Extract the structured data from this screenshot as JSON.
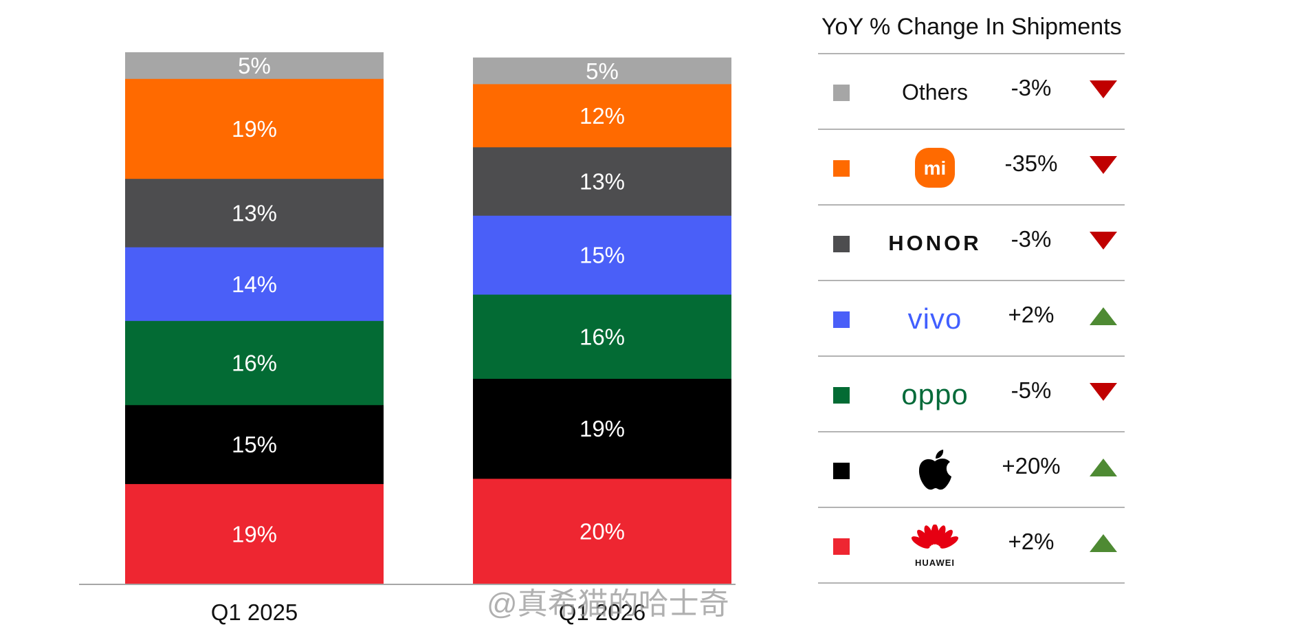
{
  "chart_data": {
    "type": "bar",
    "stacked": true,
    "categories": [
      "Q1 2025",
      "Q1 2026"
    ],
    "series": [
      {
        "name": "Huawei",
        "color": "#ee2631",
        "values": [
          19,
          20
        ]
      },
      {
        "name": "Apple",
        "color": "#000000",
        "values": [
          15,
          19
        ]
      },
      {
        "name": "OPPO",
        "color": "#036b34",
        "values": [
          16,
          16
        ]
      },
      {
        "name": "vivo",
        "color": "#4a5ff8",
        "values": [
          14,
          15
        ]
      },
      {
        "name": "HONOR",
        "color": "#4d4d4f",
        "values": [
          13,
          13
        ]
      },
      {
        "name": "Xiaomi",
        "color": "#ff6a00",
        "values": [
          19,
          12
        ]
      },
      {
        "name": "Others",
        "color": "#a6a6a6",
        "values": [
          5,
          5
        ]
      }
    ],
    "value_labels": [
      [
        "19%",
        "15%",
        "16%",
        "14%",
        "13%",
        "19%",
        "5%"
      ],
      [
        "20%",
        "19%",
        "16%",
        "15%",
        "13%",
        "12%",
        "5%"
      ]
    ],
    "ylim": [
      0,
      101
    ],
    "title": "",
    "xlabel": "",
    "ylabel": "",
    "grid": false
  },
  "legend": {
    "title": "YoY % Change In Shipments",
    "rows": [
      {
        "brand": "Others",
        "brand_type": "text",
        "color": "#a6a6a6",
        "change": "-3%",
        "direction": "down"
      },
      {
        "brand": "mi",
        "brand_type": "xiaomi-logo",
        "color": "#ff6a00",
        "change": "-35%",
        "direction": "down"
      },
      {
        "brand": "HONOR",
        "brand_type": "honor-logo",
        "color": "#4d4d4f",
        "change": "-3%",
        "direction": "down"
      },
      {
        "brand": "vivo",
        "brand_type": "vivo-logo",
        "color": "#4a5ff8",
        "change": "+2%",
        "direction": "up"
      },
      {
        "brand": "oppo",
        "brand_type": "oppo-logo",
        "color": "#036b34",
        "change": "-5%",
        "direction": "down"
      },
      {
        "brand": "apple-logo-icon",
        "brand_type": "apple-logo",
        "color": "#000000",
        "change": "+20%",
        "direction": "up"
      },
      {
        "brand": "HUAWEI",
        "brand_type": "huawei-logo",
        "color": "#ee2631",
        "change": "+2%",
        "direction": "up"
      }
    ],
    "down_color": "#c00000",
    "up_color": "#4e8a33"
  },
  "watermark_text": "@真希猫的哈士奇"
}
